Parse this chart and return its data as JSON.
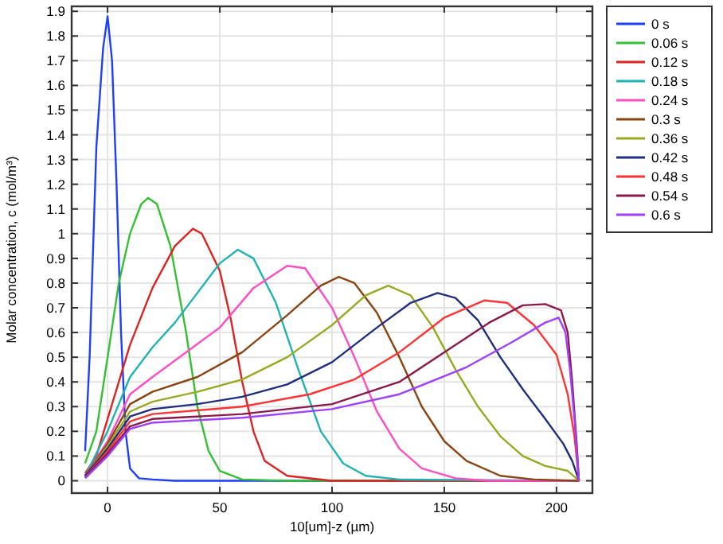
{
  "chart_data": {
    "type": "line",
    "xlabel": "10[um]-z (µm)",
    "ylabel": "Molar concentration, c (mol/m³)",
    "xlim": [
      -16,
      216
    ],
    "xticks": [
      0,
      50,
      100,
      150,
      200
    ],
    "ylim": [
      -0.05,
      1.92
    ],
    "yticks": [
      0,
      0.1,
      0.2,
      0.3,
      0.4,
      0.5,
      0.6,
      0.7,
      0.8,
      0.9,
      1,
      1.1,
      1.2,
      1.3,
      1.4,
      1.5,
      1.6,
      1.7,
      1.8,
      1.9
    ],
    "grid": true,
    "legend": "right",
    "marker": "none",
    "line_style": "solid",
    "series": [
      {
        "name": "0 s",
        "color": "#1f3fff",
        "x": [
          -10,
          -8,
          -5,
          -2,
          0,
          2,
          4,
          6,
          8,
          10,
          14,
          20,
          30,
          210
        ],
        "values": [
          0.12,
          0.5,
          1.35,
          1.75,
          1.88,
          1.7,
          1.2,
          0.6,
          0.2,
          0.05,
          0.01,
          0.005,
          0,
          0
        ]
      },
      {
        "name": "0.06 s",
        "color": "#33c033",
        "x": [
          -10,
          -5,
          0,
          5,
          10,
          15,
          18,
          22,
          28,
          35,
          40,
          45,
          50,
          60,
          80,
          210
        ],
        "values": [
          0.07,
          0.2,
          0.5,
          0.8,
          1.0,
          1.12,
          1.145,
          1.12,
          0.95,
          0.6,
          0.3,
          0.12,
          0.04,
          0.005,
          0,
          0
        ]
      },
      {
        "name": "0.12 s",
        "color": "#dd2222",
        "x": [
          -10,
          -5,
          0,
          10,
          20,
          30,
          38,
          42,
          50,
          55,
          60,
          65,
          70,
          80,
          100,
          210
        ],
        "values": [
          0.03,
          0.1,
          0.25,
          0.55,
          0.78,
          0.95,
          1.02,
          1.0,
          0.85,
          0.65,
          0.4,
          0.2,
          0.08,
          0.02,
          0,
          0
        ]
      },
      {
        "name": "0.18 s",
        "color": "#1fb3b3",
        "x": [
          -10,
          0,
          10,
          20,
          30,
          40,
          50,
          58,
          65,
          75,
          85,
          95,
          105,
          115,
          130,
          210
        ],
        "values": [
          0.02,
          0.2,
          0.42,
          0.54,
          0.64,
          0.76,
          0.88,
          0.935,
          0.9,
          0.72,
          0.45,
          0.2,
          0.07,
          0.02,
          0.005,
          0
        ]
      },
      {
        "name": "0.24 s",
        "color": "#ff4dc4",
        "x": [
          -10,
          0,
          10,
          20,
          35,
          50,
          65,
          80,
          88,
          100,
          110,
          120,
          130,
          140,
          155,
          170,
          210
        ],
        "values": [
          0.02,
          0.16,
          0.35,
          0.42,
          0.52,
          0.62,
          0.78,
          0.87,
          0.86,
          0.7,
          0.5,
          0.28,
          0.13,
          0.05,
          0.01,
          0,
          0
        ]
      },
      {
        "name": "0.3 s",
        "color": "#8b4513",
        "x": [
          -10,
          0,
          10,
          20,
          40,
          60,
          80,
          95,
          103,
          110,
          120,
          130,
          140,
          150,
          160,
          175,
          190,
          210
        ],
        "values": [
          0.02,
          0.15,
          0.31,
          0.36,
          0.42,
          0.52,
          0.67,
          0.79,
          0.825,
          0.8,
          0.68,
          0.5,
          0.3,
          0.16,
          0.08,
          0.02,
          0.005,
          0
        ]
      },
      {
        "name": "0.36 s",
        "color": "#99aa22",
        "x": [
          -10,
          0,
          10,
          20,
          40,
          60,
          80,
          100,
          115,
          125,
          135,
          145,
          155,
          165,
          175,
          185,
          195,
          205,
          210
        ],
        "values": [
          0.02,
          0.14,
          0.28,
          0.32,
          0.36,
          0.41,
          0.5,
          0.63,
          0.75,
          0.79,
          0.75,
          0.62,
          0.45,
          0.3,
          0.18,
          0.1,
          0.06,
          0.04,
          0
        ]
      },
      {
        "name": "0.42 s",
        "color": "#1f2f7f",
        "x": [
          -10,
          0,
          10,
          20,
          40,
          60,
          80,
          100,
          120,
          135,
          147,
          155,
          165,
          175,
          185,
          195,
          203,
          207,
          210
        ],
        "values": [
          0.02,
          0.13,
          0.26,
          0.29,
          0.31,
          0.34,
          0.39,
          0.48,
          0.62,
          0.72,
          0.76,
          0.74,
          0.65,
          0.5,
          0.37,
          0.25,
          0.15,
          0.08,
          0
        ]
      },
      {
        "name": "0.48 s",
        "color": "#ff3333",
        "x": [
          -10,
          0,
          10,
          20,
          60,
          90,
          110,
          130,
          150,
          168,
          178,
          190,
          200,
          205,
          208,
          210
        ],
        "values": [
          0.015,
          0.12,
          0.24,
          0.27,
          0.3,
          0.35,
          0.41,
          0.52,
          0.66,
          0.73,
          0.72,
          0.63,
          0.51,
          0.35,
          0.18,
          0
        ]
      },
      {
        "name": "0.54 s",
        "color": "#8b1a4a",
        "x": [
          -10,
          0,
          10,
          20,
          60,
          100,
          130,
          150,
          170,
          185,
          195,
          202,
          205,
          207,
          209,
          210
        ],
        "values": [
          0.015,
          0.11,
          0.22,
          0.25,
          0.27,
          0.31,
          0.4,
          0.52,
          0.64,
          0.71,
          0.715,
          0.69,
          0.6,
          0.4,
          0.15,
          0
        ]
      },
      {
        "name": "0.6 s",
        "color": "#a040ff",
        "x": [
          -10,
          0,
          10,
          20,
          60,
          100,
          130,
          160,
          180,
          195,
          201,
          204,
          206,
          208,
          210
        ],
        "values": [
          0.01,
          0.1,
          0.21,
          0.235,
          0.255,
          0.29,
          0.35,
          0.46,
          0.56,
          0.64,
          0.66,
          0.6,
          0.45,
          0.25,
          0
        ]
      }
    ]
  }
}
